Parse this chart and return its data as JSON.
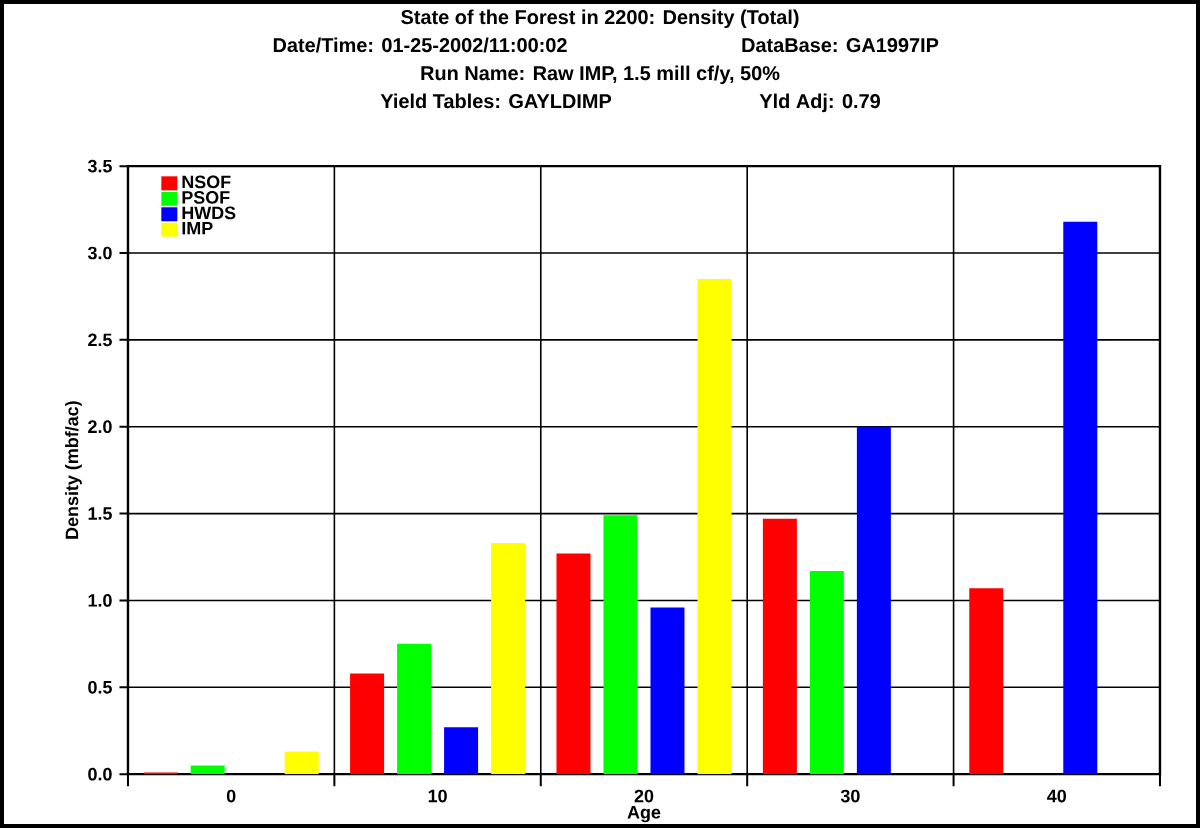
{
  "chart_data": {
    "type": "bar",
    "title": "State of the Forest in 2200: Density (Total)",
    "annotations": [
      "Date/Time: 01-25-2002/11:00:02",
      "DataBase: GA1997IP",
      "Run Name: Raw IMP, 1.5 mill cf/y, 50%",
      "Yield Tables: GAYLDIMP",
      "Yld Adj: 0.79"
    ],
    "xlabel": "Age",
    "ylabel": "Density (mbf/ac)",
    "categories": [
      "0",
      "10",
      "20",
      "30",
      "40"
    ],
    "series": [
      {
        "name": "NSOF",
        "color": "#ff0000",
        "values": [
          0.01,
          0.58,
          1.27,
          1.47,
          1.07
        ]
      },
      {
        "name": "PSOF",
        "color": "#00ff00",
        "values": [
          0.05,
          0.75,
          1.49,
          1.17,
          null
        ]
      },
      {
        "name": "HWDS",
        "color": "#0000ff",
        "values": [
          null,
          0.27,
          0.96,
          2.0,
          3.18
        ]
      },
      {
        "name": "IMP",
        "color": "#ffff00",
        "values": [
          0.13,
          1.33,
          2.85,
          null,
          null
        ]
      }
    ],
    "ylim": [
      0,
      3.5
    ],
    "yticks": [
      {
        "value": 0,
        "label": "0.0"
      },
      {
        "value": 0.5,
        "label": "0.5"
      },
      {
        "value": 1,
        "label": "1.0"
      },
      {
        "value": 1.5,
        "label": "1.5"
      },
      {
        "value": 2,
        "label": "2.0"
      },
      {
        "value": 2.5,
        "label": "2.5"
      },
      {
        "value": 3,
        "label": "3.0"
      },
      {
        "value": 3.5,
        "label": "3.5"
      }
    ],
    "grid": true,
    "legend": "top left"
  }
}
